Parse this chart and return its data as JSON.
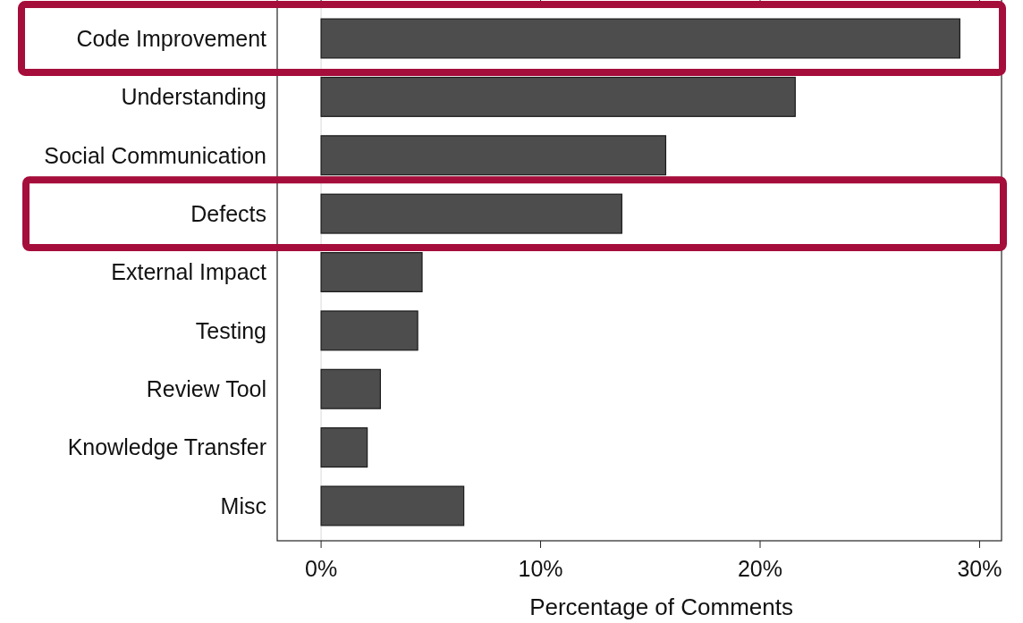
{
  "chart_data": {
    "type": "bar",
    "orientation": "horizontal",
    "xlabel": "Percentage of Comments",
    "categories": [
      "Code Improvement",
      "Understanding",
      "Social Communication",
      "Defects",
      "External Impact",
      "Testing",
      "Review Tool",
      "Knowledge Transfer",
      "Misc"
    ],
    "values": [
      29.1,
      21.6,
      15.7,
      13.7,
      4.6,
      4.4,
      2.7,
      2.1,
      6.5
    ],
    "color": "#4d4d4d",
    "xlim": [
      -2,
      31
    ],
    "xticks": [
      {
        "value": 0,
        "label": "0%"
      },
      {
        "value": 10,
        "label": "10%"
      },
      {
        "value": 20,
        "label": "20%"
      },
      {
        "value": 30,
        "label": "30%"
      }
    ],
    "ref_lines": [
      {
        "axis": "x",
        "value": 0,
        "color": "#e6e6e6"
      }
    ]
  }
}
